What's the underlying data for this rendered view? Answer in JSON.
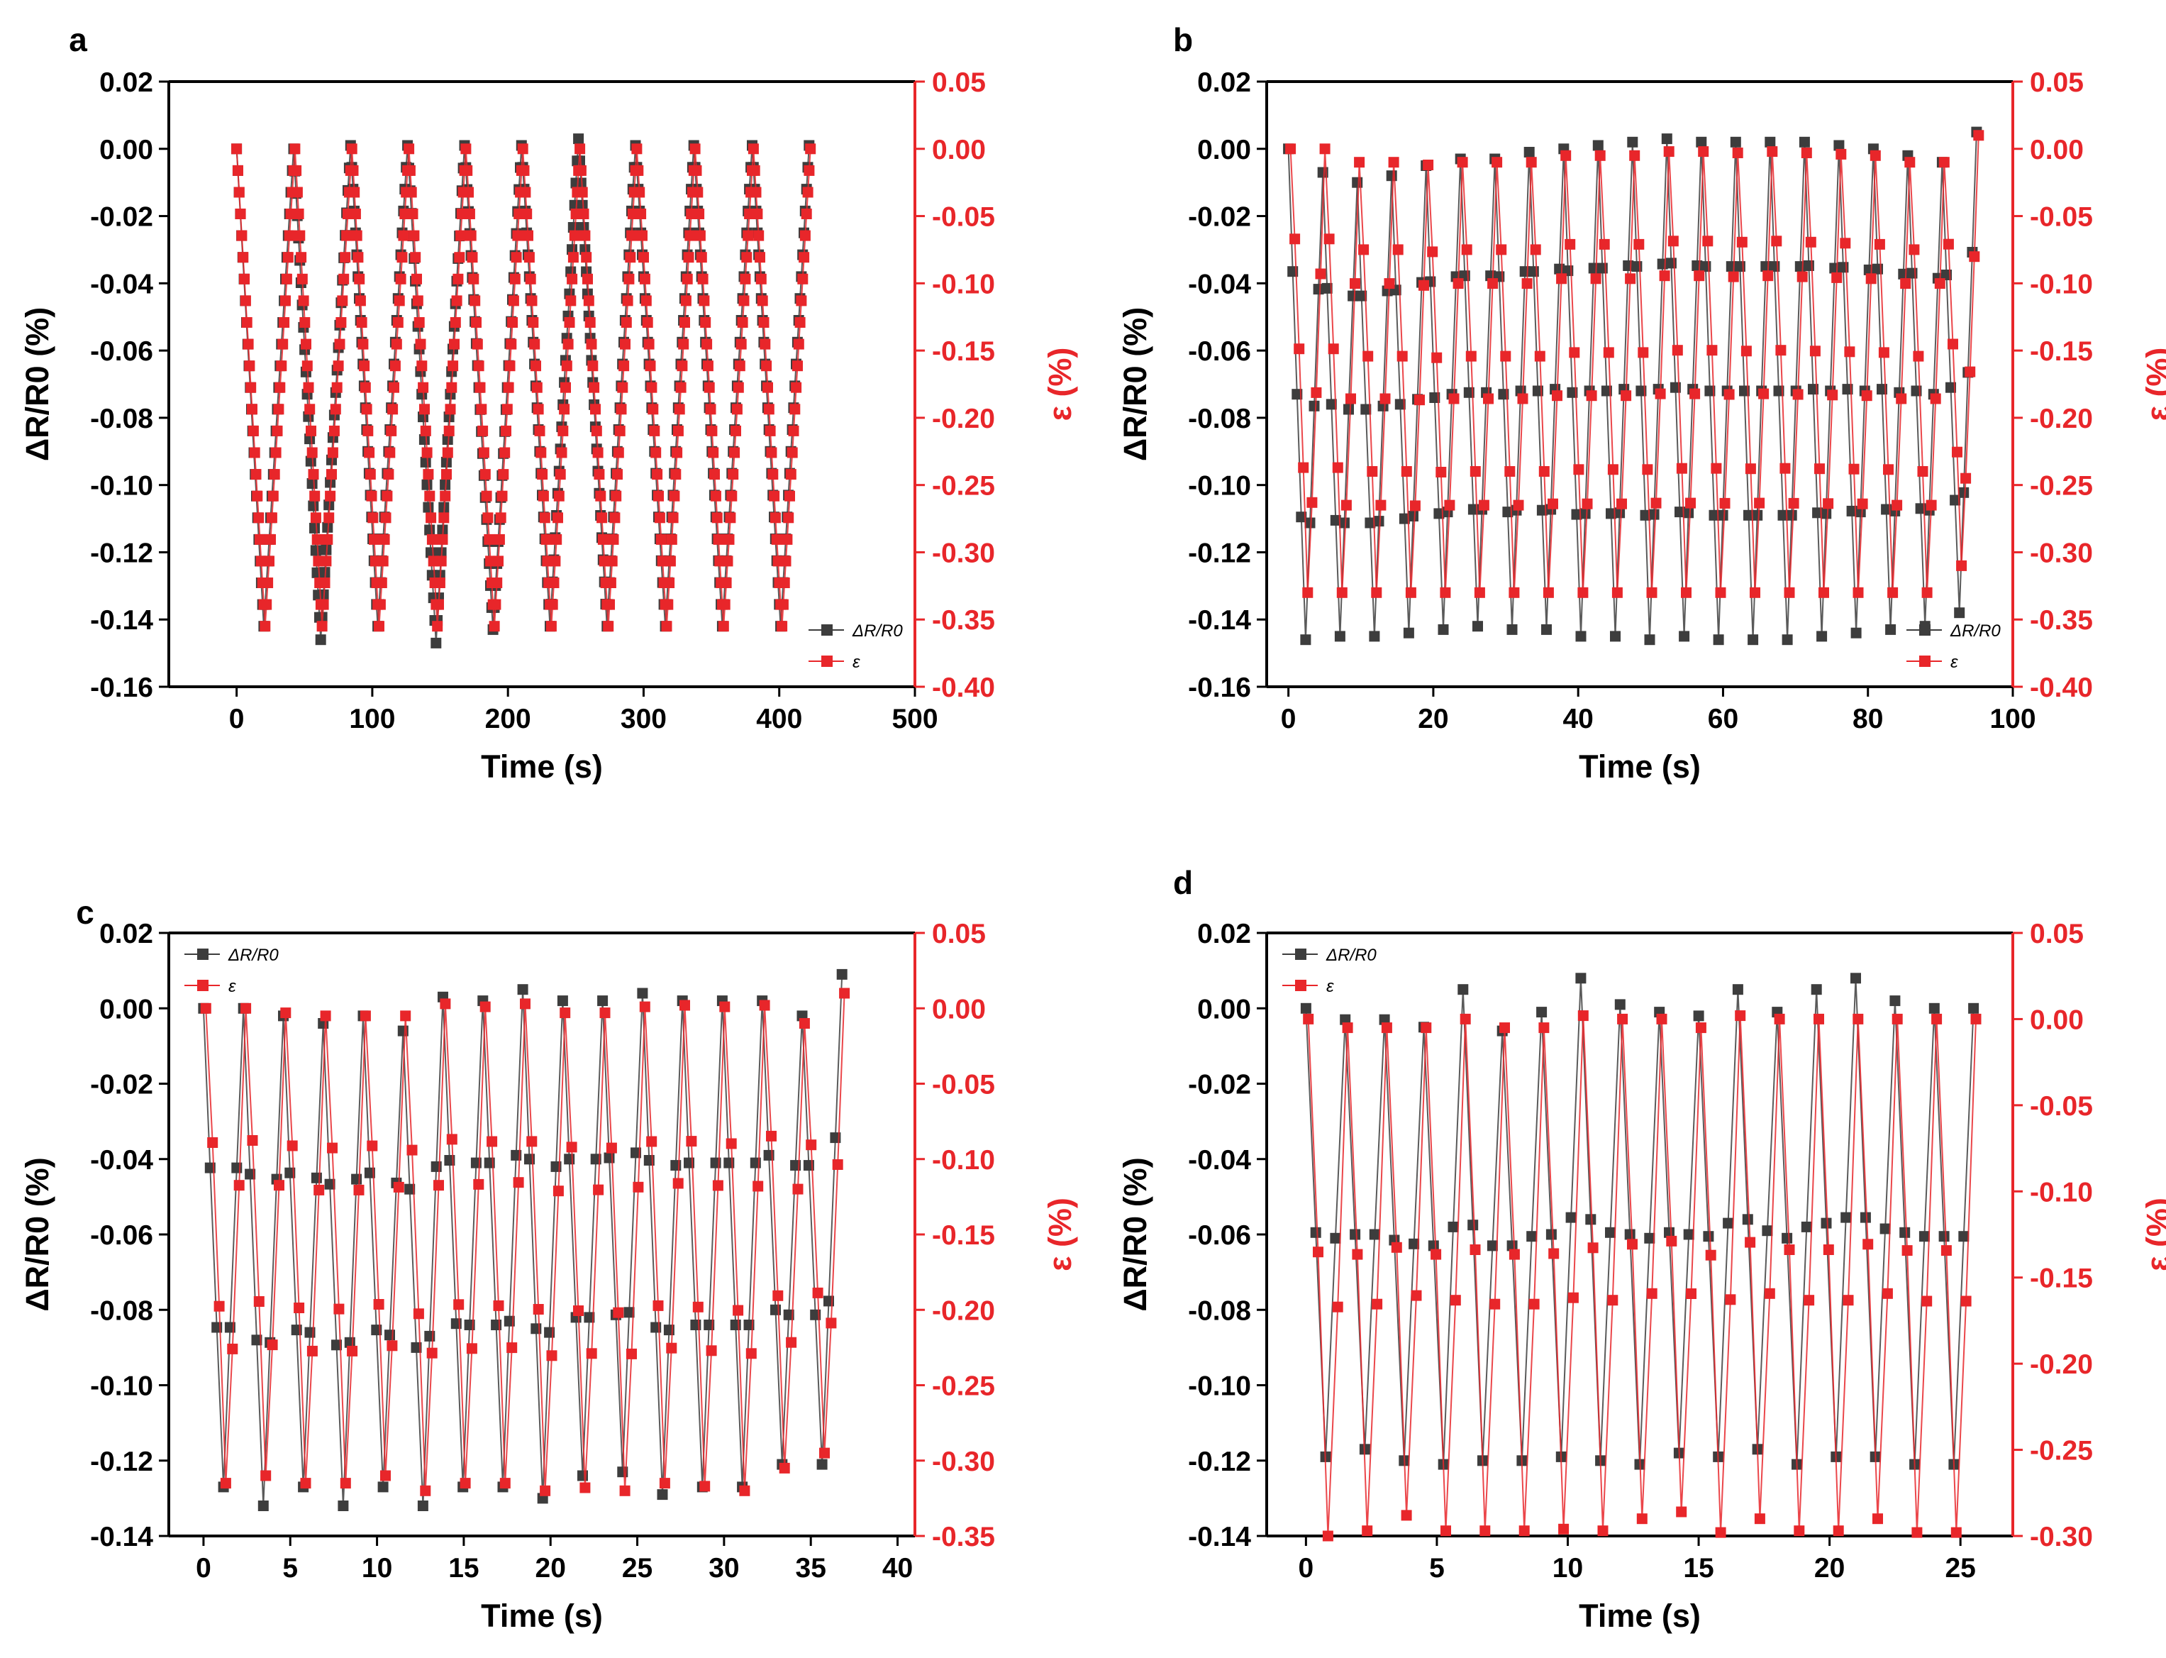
{
  "colors": {
    "resistance": "#3d3d3d",
    "strain": "#e8262a",
    "strain_axis": "#e8262a",
    "axis": "#000000"
  },
  "chart_data": [
    {
      "panel": "a",
      "type": "scatter",
      "markers": "squares-with-lines",
      "xlabel": "Time (s)",
      "ylabel_left": "ΔR/R0 (%)",
      "ylabel_right": "ε (%)",
      "xlim": [
        -50,
        500
      ],
      "xticks": [
        "0",
        "100",
        "200",
        "300",
        "400",
        "500"
      ],
      "ylim_left": [
        -0.16,
        0.02
      ],
      "yticks_left": [
        "0.02",
        "0.00",
        "-0.02",
        "-0.04",
        "-0.06",
        "-0.08",
        "-0.10",
        "-0.12",
        "-0.14",
        "-0.16"
      ],
      "ylim_right": [
        -0.4,
        0.05
      ],
      "yticks_right": [
        "0.05",
        "0.00",
        "-0.05",
        "-0.10",
        "-0.15",
        "-0.20",
        "-0.25",
        "-0.30",
        "-0.35",
        "-0.40"
      ],
      "legend_position": "bottom-right",
      "legend": [
        "ΔR/R0",
        "ε"
      ],
      "dense_triangle": true,
      "series": [
        {
          "name": "ΔR/R0",
          "axis": "left",
          "x_points": [
            0,
            20,
            42,
            62,
            84,
            104,
            126,
            147,
            168,
            189,
            210,
            231,
            252,
            273,
            294,
            316,
            337,
            358,
            380,
            401,
            422
          ],
          "y_points": [
            0.0,
            -0.142,
            0.0,
            -0.146,
            0.001,
            -0.142,
            0.001,
            -0.147,
            0.001,
            -0.143,
            0.001,
            -0.142,
            0.003,
            -0.142,
            0.001,
            -0.142,
            0.001,
            -0.142,
            0.001,
            -0.142,
            0.001
          ]
        },
        {
          "name": "ε",
          "axis": "right",
          "x_points": [
            0,
            21,
            43,
            63,
            85,
            105,
            127,
            148,
            169,
            190,
            211,
            232,
            253,
            274,
            295,
            317,
            338,
            359,
            381,
            402,
            423
          ],
          "y_points": [
            0.0,
            -0.355,
            0.0,
            -0.355,
            0.0,
            -0.355,
            0.0,
            -0.355,
            0.0,
            -0.355,
            0.0,
            -0.355,
            0.0,
            -0.355,
            0.0,
            -0.355,
            0.0,
            -0.355,
            0.0,
            -0.355,
            0.0
          ]
        }
      ]
    },
    {
      "panel": "b",
      "type": "scatter",
      "markers": "squares-with-lines",
      "xlabel": "Time (s)",
      "ylabel_left": "ΔR/R0 (%)",
      "ylabel_right": "ε (%)",
      "xlim": [
        -3,
        100
      ],
      "xticks": [
        "0",
        "20",
        "40",
        "60",
        "80",
        "100"
      ],
      "ylim_left": [
        -0.16,
        0.02
      ],
      "yticks_left": [
        "0.02",
        "0.00",
        "-0.02",
        "-0.04",
        "-0.06",
        "-0.08",
        "-0.10",
        "-0.12",
        "-0.14",
        "-0.16"
      ],
      "ylim_right": [
        -0.4,
        0.05
      ],
      "yticks_right": [
        "0.05",
        "0.00",
        "-0.05",
        "-0.10",
        "-0.15",
        "-0.20",
        "-0.25",
        "-0.30",
        "-0.35",
        "-0.40"
      ],
      "legend_position": "bottom-right",
      "legend": [
        "ΔR/R0",
        "ε"
      ],
      "period": 4.75,
      "series": [
        {
          "name": "ΔR/R0",
          "axis": "left",
          "peak": [
            0.0,
            -0.007,
            -0.01,
            -0.008,
            -0.005,
            -0.003,
            -0.003,
            -0.001,
            0.0,
            0.001,
            0.002,
            0.003,
            0.002,
            0.002,
            0.002,
            0.002,
            0.001,
            0.0,
            -0.002,
            -0.004,
            0.005
          ],
          "trough": [
            -0.146,
            -0.145,
            -0.145,
            -0.144,
            -0.143,
            -0.142,
            -0.143,
            -0.143,
            -0.145,
            -0.145,
            -0.146,
            -0.145,
            -0.146,
            -0.146,
            -0.146,
            -0.145,
            -0.144,
            -0.143,
            -0.142,
            -0.138
          ]
        },
        {
          "name": "ε",
          "axis": "right",
          "peak": [
            0.0,
            0.0,
            -0.01,
            -0.01,
            -0.012,
            -0.01,
            -0.01,
            -0.01,
            -0.005,
            -0.005,
            -0.005,
            -0.002,
            -0.002,
            -0.003,
            -0.002,
            -0.003,
            -0.004,
            -0.005,
            -0.01,
            -0.01,
            0.01
          ],
          "trough": [
            -0.33,
            -0.33,
            -0.33,
            -0.33,
            -0.33,
            -0.33,
            -0.33,
            -0.33,
            -0.33,
            -0.33,
            -0.33,
            -0.33,
            -0.33,
            -0.33,
            -0.33,
            -0.33,
            -0.33,
            -0.33,
            -0.33,
            -0.31
          ]
        }
      ]
    },
    {
      "panel": "c",
      "type": "scatter",
      "markers": "squares-with-lines",
      "xlabel": "Time (s)",
      "ylabel_left": "ΔR/R0 (%)",
      "ylabel_right": "ε (%)",
      "xlim": [
        -2,
        41
      ],
      "xticks": [
        "0",
        "5",
        "10",
        "15",
        "20",
        "25",
        "30",
        "35",
        "40"
      ],
      "ylim_left": [
        -0.14,
        0.02
      ],
      "yticks_left": [
        "0.02",
        "0.00",
        "-0.02",
        "-0.04",
        "-0.06",
        "-0.08",
        "-0.10",
        "-0.12",
        "-0.14"
      ],
      "ylim_right": [
        -0.35,
        0.05
      ],
      "yticks_right": [
        "0.05",
        "0.00",
        "-0.05",
        "-0.10",
        "-0.15",
        "-0.20",
        "-0.25",
        "-0.30",
        "-0.35"
      ],
      "legend_position": "top-left",
      "legend": [
        "ΔR/R0",
        "ε"
      ],
      "period": 2.3,
      "series": [
        {
          "name": "ΔR/R0",
          "axis": "left",
          "peak": [
            0.0,
            0.0,
            -0.002,
            -0.004,
            -0.002,
            -0.006,
            0.003,
            0.002,
            0.005,
            0.002,
            0.002,
            0.004,
            0.002,
            0.002,
            0.002,
            -0.002,
            0.009
          ],
          "trough": [
            -0.127,
            -0.132,
            -0.127,
            -0.132,
            -0.127,
            -0.132,
            -0.127,
            -0.127,
            -0.13,
            -0.124,
            -0.123,
            -0.129,
            -0.127,
            -0.127,
            -0.121,
            -0.121
          ]
        },
        {
          "name": "ε",
          "axis": "right",
          "peak": [
            0.0,
            0.0,
            -0.003,
            -0.005,
            -0.005,
            -0.005,
            0.003,
            0.001,
            0.003,
            -0.003,
            -0.003,
            0.001,
            0.002,
            0.001,
            0.002,
            -0.01,
            0.01
          ],
          "trough": [
            -0.315,
            -0.31,
            -0.315,
            -0.315,
            -0.31,
            -0.32,
            -0.315,
            -0.315,
            -0.32,
            -0.318,
            -0.32,
            -0.315,
            -0.317,
            -0.32,
            -0.305,
            -0.295
          ]
        }
      ]
    },
    {
      "panel": "d",
      "type": "scatter",
      "markers": "squares-with-lines",
      "xlabel": "Time (s)",
      "ylabel_left": "ΔR/R0 (%)",
      "ylabel_right": "ε (%)",
      "xlim": [
        -1.5,
        27
      ],
      "xticks": [
        "0",
        "5",
        "10",
        "15",
        "20",
        "25"
      ],
      "ylim_left": [
        -0.14,
        0.02
      ],
      "yticks_left": [
        "0.02",
        "0.00",
        "-0.02",
        "-0.04",
        "-0.06",
        "-0.08",
        "-0.10",
        "-0.12",
        "-0.14"
      ],
      "ylim_right": [
        -0.3,
        0.05
      ],
      "yticks_right": [
        "0.05",
        "0.00",
        "-0.05",
        "-0.10",
        "-0.15",
        "-0.20",
        "-0.25",
        "-0.30"
      ],
      "legend_position": "top-left",
      "legend": [
        "ΔR/R0",
        "ε"
      ],
      "period": 1.5,
      "series": [
        {
          "name": "ΔR/R0",
          "axis": "left",
          "peak": [
            0.0,
            -0.003,
            -0.003,
            -0.005,
            0.005,
            -0.006,
            -0.001,
            0.008,
            0.001,
            -0.001,
            -0.002,
            0.005,
            -0.001,
            0.005,
            0.008,
            0.002,
            0.0,
            0.0
          ],
          "trough": [
            -0.119,
            -0.117,
            -0.12,
            -0.121,
            -0.12,
            -0.12,
            -0.119,
            -0.12,
            -0.121,
            -0.118,
            -0.119,
            -0.117,
            -0.121,
            -0.119,
            -0.119,
            -0.121,
            -0.121
          ]
        },
        {
          "name": "ε",
          "axis": "right",
          "peak": [
            0.0,
            -0.005,
            -0.005,
            -0.005,
            0.0,
            -0.005,
            -0.005,
            0.002,
            0.0,
            0.0,
            -0.005,
            0.002,
            0.0,
            0.0,
            0.0,
            0.0,
            0.0,
            0.0
          ],
          "trough": [
            -0.3,
            -0.297,
            -0.288,
            -0.297,
            -0.297,
            -0.297,
            -0.296,
            -0.297,
            -0.29,
            -0.286,
            -0.298,
            -0.29,
            -0.297,
            -0.297,
            -0.29,
            -0.298,
            -0.298
          ]
        }
      ]
    }
  ]
}
